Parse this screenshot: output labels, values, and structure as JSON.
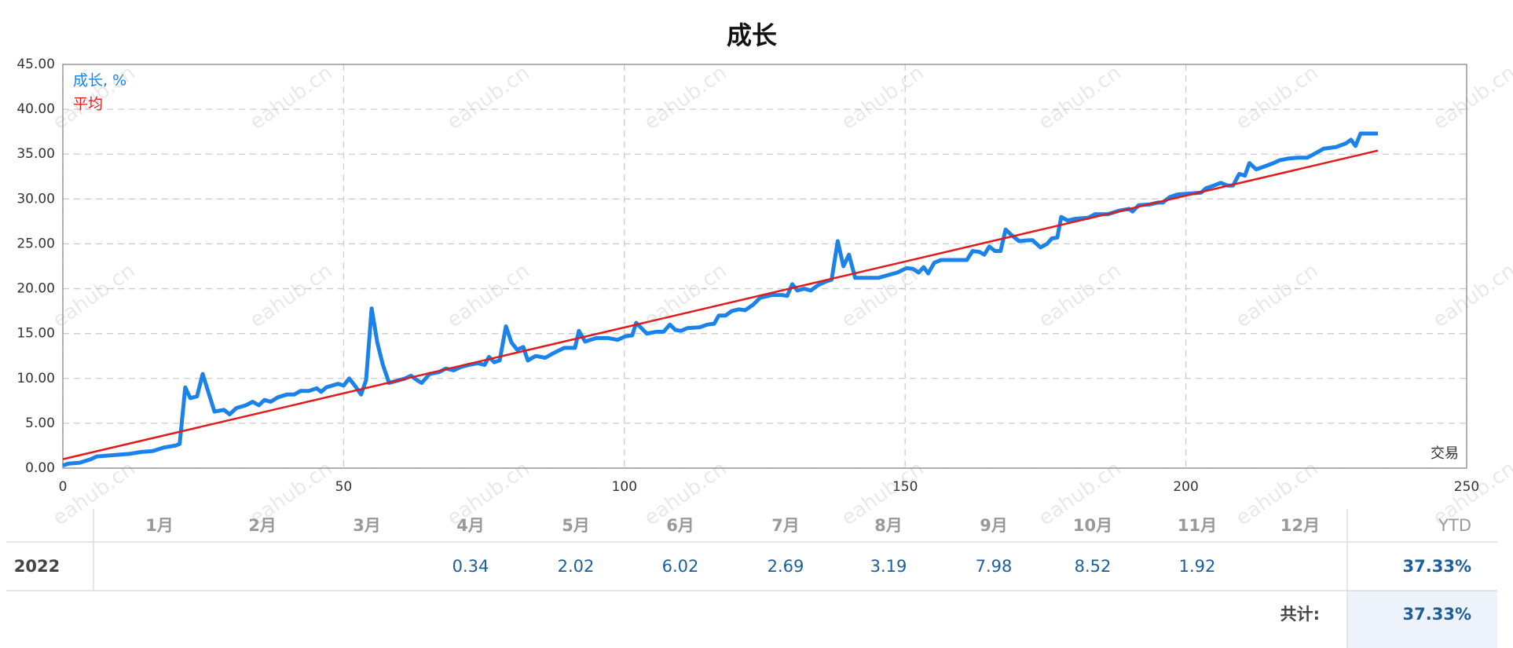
{
  "chart_data": {
    "type": "line",
    "title": "成长",
    "xlabel": "交易",
    "grid": true,
    "legend": "upper left",
    "xlim": [
      0,
      250
    ],
    "xticks": [
      0,
      50,
      100,
      150,
      200,
      250
    ],
    "ylim": [
      0,
      45
    ],
    "yticks": [
      {
        "value": 0,
        "label": "0.00"
      },
      {
        "value": 5,
        "label": "5.00"
      },
      {
        "value": 10,
        "label": "10.00"
      },
      {
        "value": 15,
        "label": "15.00"
      },
      {
        "value": 20,
        "label": "20.00"
      },
      {
        "value": 25,
        "label": "25.00"
      },
      {
        "value": 30,
        "label": "30.00"
      },
      {
        "value": 35,
        "label": "35.00"
      },
      {
        "value": 40,
        "label": "40.00"
      },
      {
        "value": 45,
        "label": "45.00"
      }
    ],
    "series": [
      {
        "name": "成长, %",
        "color": "#1a82e8",
        "width": 5,
        "x": [
          0,
          1,
          3,
          5,
          6,
          8,
          10,
          12,
          14,
          16,
          18,
          20,
          20.8,
          21.8,
          22.7,
          23.9,
          24.9,
          27,
          28.7,
          29.7,
          30.9,
          32.6,
          33.8,
          34.9,
          35.9,
          37,
          38.3,
          39.9,
          41.2,
          42.3,
          43.8,
          45.2,
          46,
          46.9,
          49,
          50,
          51,
          52,
          53.1,
          54,
          55,
          56,
          57,
          58.1,
          59.3,
          61,
          62,
          63.1,
          63.9,
          65.3,
          67,
          68.2,
          69.6,
          71,
          72.3,
          73.9,
          75.1,
          75.9,
          76.8,
          77.8,
          78.9,
          79.9,
          80.9,
          82,
          82.8,
          84.2,
          85.9,
          87.6,
          89.3,
          91.2,
          91.9,
          93,
          95,
          97.1,
          98.8,
          100.2,
          101.4,
          102.1,
          104,
          105.7,
          107,
          108.1,
          109.1,
          110.1,
          111.2,
          113.4,
          114.8,
          116,
          116.8,
          118,
          119.1,
          120.4,
          121.5,
          122.9,
          124.2,
          126.3,
          128,
          129,
          129.9,
          130.8,
          132,
          133.2,
          134.5,
          135.9,
          136.9,
          138,
          139,
          140,
          141.1,
          143.5,
          145.2,
          146.9,
          148.6,
          150.3,
          151.4,
          152.4,
          153.3,
          154.1,
          155.2,
          156.4,
          158.9,
          161,
          162,
          163.2,
          164.1,
          165,
          166,
          167,
          167.9,
          168.9,
          170.3,
          172,
          172.7,
          174.1,
          175.3,
          176.1,
          177.1,
          177.8,
          178.9,
          180.4,
          182.6,
          183.8,
          186.1,
          188.1,
          189.9,
          190.5,
          191.6,
          193.6,
          195,
          195.9,
          197.1,
          198.5,
          200.5,
          202.7,
          203.6,
          205,
          206.2,
          207.4,
          208.4,
          209.5,
          210.5,
          211.3,
          212.5,
          214.3,
          215.6,
          216.6,
          218.2,
          219.9,
          221.6,
          222.8,
          224.5,
          226.8,
          228.5,
          229.4,
          230.2,
          231.1,
          234.2
        ],
        "values": [
          0.3,
          0.5,
          0.6,
          1.0,
          1.3,
          1.4,
          1.5,
          1.6,
          1.8,
          1.9,
          2.3,
          2.5,
          2.7,
          9.0,
          7.8,
          8.0,
          10.5,
          6.3,
          6.5,
          6.0,
          6.7,
          7.0,
          7.4,
          7.0,
          7.6,
          7.4,
          7.9,
          8.2,
          8.2,
          8.6,
          8.6,
          8.9,
          8.5,
          9.0,
          9.4,
          9.2,
          10.0,
          9.2,
          8.2,
          9.8,
          17.8,
          14.0,
          11.5,
          9.5,
          9.7,
          10.0,
          10.3,
          9.8,
          9.5,
          10.5,
          10.7,
          11.1,
          10.9,
          11.3,
          11.5,
          11.7,
          11.5,
          12.4,
          11.8,
          12.0,
          15.8,
          14.0,
          13.2,
          13.5,
          12.0,
          12.5,
          12.3,
          12.9,
          13.4,
          13.4,
          15.3,
          14.1,
          14.5,
          14.5,
          14.3,
          14.7,
          14.8,
          16.2,
          15.0,
          15.2,
          15.2,
          16.0,
          15.4,
          15.3,
          15.6,
          15.7,
          16.0,
          16.1,
          17.0,
          17.0,
          17.5,
          17.7,
          17.6,
          18.2,
          19.0,
          19.3,
          19.3,
          19.2,
          20.5,
          19.8,
          20.0,
          19.8,
          20.4,
          20.8,
          21.0,
          25.3,
          22.5,
          23.8,
          21.2,
          21.2,
          21.2,
          21.5,
          21.8,
          22.3,
          22.2,
          21.8,
          22.4,
          21.7,
          22.9,
          23.2,
          23.2,
          23.2,
          24.2,
          24.1,
          23.8,
          24.7,
          24.2,
          24.2,
          26.6,
          26.0,
          25.3,
          25.4,
          25.4,
          24.6,
          25.0,
          25.6,
          25.7,
          28.0,
          27.6,
          27.8,
          27.9,
          28.3,
          28.3,
          28.7,
          28.9,
          28.6,
          29.3,
          29.4,
          29.6,
          29.6,
          30.2,
          30.5,
          30.6,
          30.7,
          31.2,
          31.5,
          31.8,
          31.5,
          31.5,
          32.8,
          32.6,
          34.0,
          33.3,
          33.7,
          34.0,
          34.3,
          34.5,
          34.6,
          34.6,
          35.0,
          35.6,
          35.8,
          36.2,
          36.6,
          35.9,
          37.3,
          37.3
        ]
      },
      {
        "name": "平均",
        "color": "#e31a1c",
        "width": 2.5,
        "x": [
          0,
          234.2
        ],
        "values": [
          1.0,
          35.4
        ]
      }
    ]
  },
  "watermark": "eahub.cn",
  "table": {
    "header": [
      "1月",
      "2月",
      "3月",
      "4月",
      "5月",
      "6月",
      "7月",
      "8月",
      "9月",
      "10月",
      "11月",
      "12月"
    ],
    "ytd_header": "YTD",
    "rows": [
      {
        "year": "2022",
        "values": [
          null,
          null,
          null,
          0.34,
          2.02,
          6.02,
          2.69,
          3.19,
          7.98,
          8.52,
          1.92,
          null
        ],
        "ytd": "37.33%"
      }
    ],
    "total_label": "共计:",
    "total": "37.33%"
  }
}
